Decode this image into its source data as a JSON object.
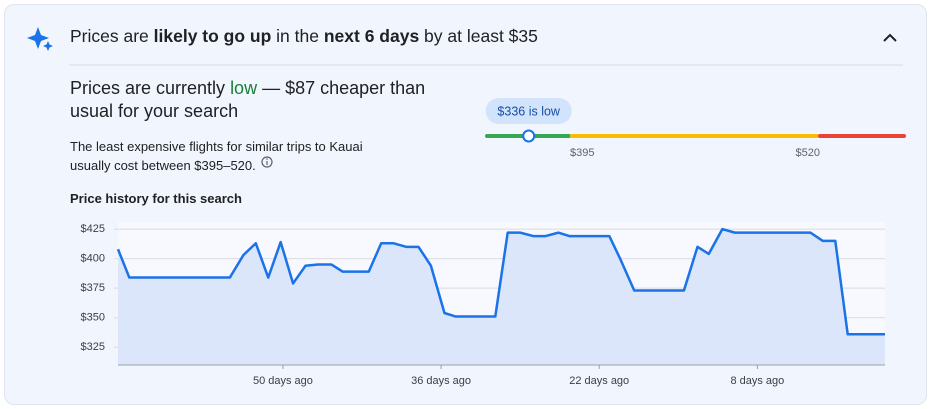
{
  "header": {
    "parts": [
      "Prices are ",
      "likely to go up",
      " in the ",
      "next 6 days",
      " by at least $35"
    ]
  },
  "summary": {
    "parts": [
      "Prices are currently ",
      "low",
      " — $87 cheaper than usual for your search"
    ]
  },
  "description": "The least expensive flights for similar trips to Kauai usually cost between $395–520.",
  "price_range": {
    "current": {
      "value": 336,
      "label": "$336 is low"
    },
    "ticks": [
      {
        "value": 395,
        "label": "$395"
      },
      {
        "value": 520,
        "label": "$520"
      }
    ]
  },
  "chart_data": {
    "type": "line",
    "title": "Price history for this search",
    "x": [
      64.6,
      63.6,
      54.7,
      53.5,
      52.4,
      51.3,
      50.2,
      49.1,
      48.0,
      46.9,
      45.7,
      44.7,
      42.4,
      41.3,
      40.2,
      39.1,
      38.0,
      36.9,
      35.7,
      34.7,
      31.2,
      30.1,
      29.0,
      27.8,
      26.8,
      25.6,
      24.6,
      21.1,
      20.1,
      18.9,
      14.5,
      13.3,
      12.3,
      11.1,
      10.0,
      3.3,
      2.2,
      1.1,
      0.0,
      -3.3
    ],
    "series": [
      {
        "color": "#1a73e8",
        "values": [
          408,
          384,
          384,
          403,
          413,
          384,
          414,
          379,
          394,
          395,
          395,
          389,
          389,
          413,
          413,
          410,
          410,
          394,
          354,
          351,
          351,
          422,
          422,
          419,
          419,
          422,
          419,
          419,
          399,
          373,
          373,
          410,
          404,
          425,
          422,
          422,
          415,
          415,
          336,
          336
        ]
      }
    ],
    "xlim": [
      64.6,
      -3.3
    ],
    "ylim": [
      310,
      431
    ],
    "xticks": [
      {
        "value": 50,
        "label": "50 days ago"
      },
      {
        "value": 36,
        "label": "36 days ago"
      },
      {
        "value": 22,
        "label": "22 days ago"
      },
      {
        "value": 8,
        "label": "8 days ago"
      }
    ],
    "yticks": [
      {
        "value": 325,
        "label": "$325"
      },
      {
        "value": 350,
        "label": "$350"
      },
      {
        "value": 375,
        "label": "$375"
      },
      {
        "value": 400,
        "label": "$400"
      },
      {
        "value": 425,
        "label": "$425"
      }
    ],
    "grid": true
  }
}
